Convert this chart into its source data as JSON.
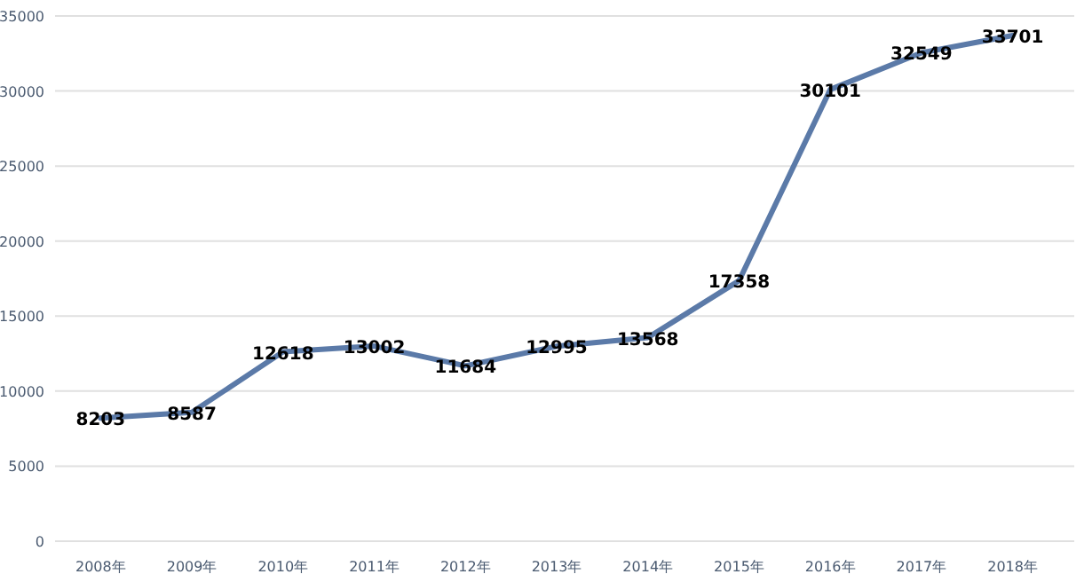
{
  "chart_data": {
    "type": "line",
    "categories": [
      "2008年",
      "2009年",
      "2010年",
      "2011年",
      "2012年",
      "2013年",
      "2014年",
      "2015年",
      "2016年",
      "2017年",
      "2018年"
    ],
    "series": [
      {
        "color": "#5b7aa8",
        "values": [
          8203,
          8587,
          12618,
          13002,
          11684,
          12995,
          13568,
          17358,
          30101,
          32549,
          33701
        ]
      }
    ],
    "ylim": [
      0,
      35000
    ],
    "yticks": [
      0,
      5000,
      10000,
      15000,
      20000,
      25000,
      30000,
      35000
    ],
    "grid": "y",
    "data_labels": true,
    "marker": "none",
    "line_style": "solid"
  }
}
